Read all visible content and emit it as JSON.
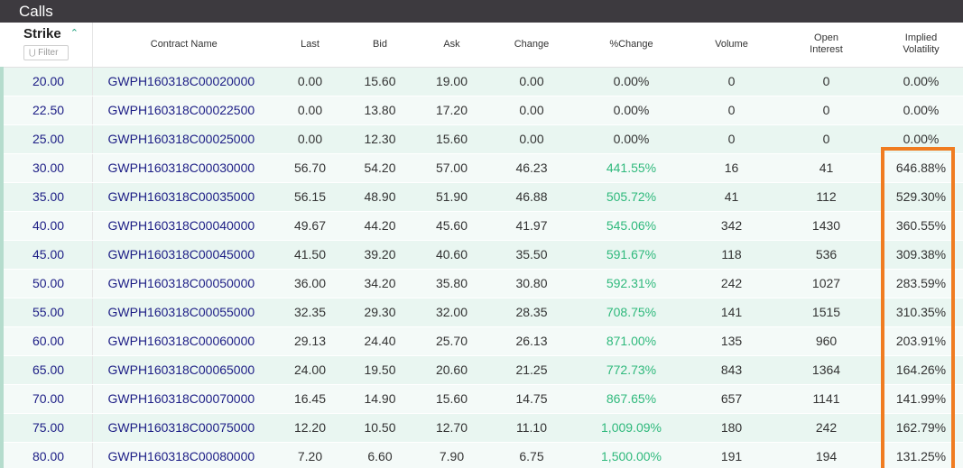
{
  "window": {
    "title": "Calls"
  },
  "header": {
    "strike": "Strike",
    "sort_icon": "caret-up-icon",
    "filter_placeholder": "Filter",
    "filter_icon": "filter-icon",
    "contract": "Contract Name",
    "last": "Last",
    "bid": "Bid",
    "ask": "Ask",
    "change": "Change",
    "pct_change": "%Change",
    "volume": "Volume",
    "open_interest": [
      "Open",
      "Interest"
    ],
    "implied_volatility": [
      "Implied",
      "Volatility"
    ]
  },
  "colors": {
    "titlebar": "#3d3a3f",
    "link": "#1c1d85",
    "positive": "#2fb97c",
    "highlight": "#f07c21"
  },
  "rows": [
    {
      "strike": "20.00",
      "contract": "GWPH160318C00020000",
      "last": "0.00",
      "bid": "15.60",
      "ask": "19.00",
      "change": "0.00",
      "pct_change": "0.00%",
      "volume": "0",
      "open_interest": "0",
      "iv": "0.00%",
      "positive": false
    },
    {
      "strike": "22.50",
      "contract": "GWPH160318C00022500",
      "last": "0.00",
      "bid": "13.80",
      "ask": "17.20",
      "change": "0.00",
      "pct_change": "0.00%",
      "volume": "0",
      "open_interest": "0",
      "iv": "0.00%",
      "positive": false
    },
    {
      "strike": "25.00",
      "contract": "GWPH160318C00025000",
      "last": "0.00",
      "bid": "12.30",
      "ask": "15.60",
      "change": "0.00",
      "pct_change": "0.00%",
      "volume": "0",
      "open_interest": "0",
      "iv": "0.00%",
      "positive": false
    },
    {
      "strike": "30.00",
      "contract": "GWPH160318C00030000",
      "last": "56.70",
      "bid": "54.20",
      "ask": "57.00",
      "change": "46.23",
      "pct_change": "441.55%",
      "volume": "16",
      "open_interest": "41",
      "iv": "646.88%",
      "positive": true
    },
    {
      "strike": "35.00",
      "contract": "GWPH160318C00035000",
      "last": "56.15",
      "bid": "48.90",
      "ask": "51.90",
      "change": "46.88",
      "pct_change": "505.72%",
      "volume": "41",
      "open_interest": "112",
      "iv": "529.30%",
      "positive": true
    },
    {
      "strike": "40.00",
      "contract": "GWPH160318C00040000",
      "last": "49.67",
      "bid": "44.20",
      "ask": "45.60",
      "change": "41.97",
      "pct_change": "545.06%",
      "volume": "342",
      "open_interest": "1430",
      "iv": "360.55%",
      "positive": true
    },
    {
      "strike": "45.00",
      "contract": "GWPH160318C00045000",
      "last": "41.50",
      "bid": "39.20",
      "ask": "40.60",
      "change": "35.50",
      "pct_change": "591.67%",
      "volume": "118",
      "open_interest": "536",
      "iv": "309.38%",
      "positive": true
    },
    {
      "strike": "50.00",
      "contract": "GWPH160318C00050000",
      "last": "36.00",
      "bid": "34.20",
      "ask": "35.80",
      "change": "30.80",
      "pct_change": "592.31%",
      "volume": "242",
      "open_interest": "1027",
      "iv": "283.59%",
      "positive": true
    },
    {
      "strike": "55.00",
      "contract": "GWPH160318C00055000",
      "last": "32.35",
      "bid": "29.30",
      "ask": "32.00",
      "change": "28.35",
      "pct_change": "708.75%",
      "volume": "141",
      "open_interest": "1515",
      "iv": "310.35%",
      "positive": true
    },
    {
      "strike": "60.00",
      "contract": "GWPH160318C00060000",
      "last": "29.13",
      "bid": "24.40",
      "ask": "25.70",
      "change": "26.13",
      "pct_change": "871.00%",
      "volume": "135",
      "open_interest": "960",
      "iv": "203.91%",
      "positive": true
    },
    {
      "strike": "65.00",
      "contract": "GWPH160318C00065000",
      "last": "24.00",
      "bid": "19.50",
      "ask": "20.60",
      "change": "21.25",
      "pct_change": "772.73%",
      "volume": "843",
      "open_interest": "1364",
      "iv": "164.26%",
      "positive": true
    },
    {
      "strike": "70.00",
      "contract": "GWPH160318C00070000",
      "last": "16.45",
      "bid": "14.90",
      "ask": "15.60",
      "change": "14.75",
      "pct_change": "867.65%",
      "volume": "657",
      "open_interest": "1141",
      "iv": "141.99%",
      "positive": true
    },
    {
      "strike": "75.00",
      "contract": "GWPH160318C00075000",
      "last": "12.20",
      "bid": "10.50",
      "ask": "12.70",
      "change": "11.10",
      "pct_change": "1,009.09%",
      "volume": "180",
      "open_interest": "242",
      "iv": "162.79%",
      "positive": true
    },
    {
      "strike": "80.00",
      "contract": "GWPH160318C00080000",
      "last": "7.20",
      "bid": "6.60",
      "ask": "7.90",
      "change": "6.75",
      "pct_change": "1,500.00%",
      "volume": "191",
      "open_interest": "194",
      "iv": "131.25%",
      "positive": true
    }
  ]
}
